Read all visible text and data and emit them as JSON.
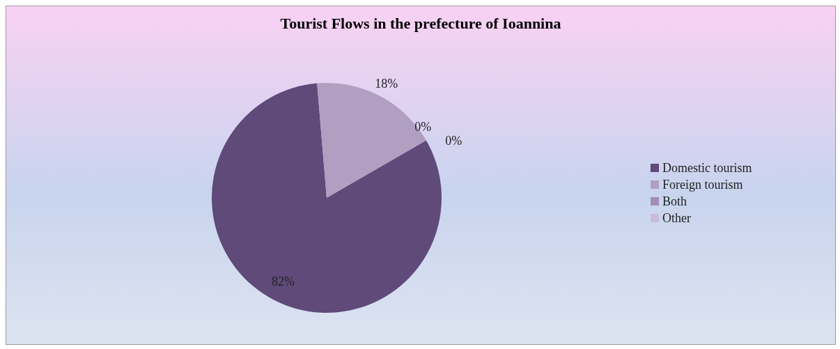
{
  "chart_data": {
    "type": "pie",
    "title": "Tourist Flows in the prefecture of Ioannina",
    "categories": [
      "Domestic tourism",
      "Foreign tourism",
      "Both",
      "Other"
    ],
    "values": [
      82,
      18,
      0,
      0
    ],
    "colors": [
      "#5f4a7a",
      "#b09fc0",
      "#a48cb6",
      "#c9bbd9"
    ],
    "value_labels": [
      "82%",
      "18%",
      "0%",
      "0%"
    ],
    "legend": "right"
  }
}
